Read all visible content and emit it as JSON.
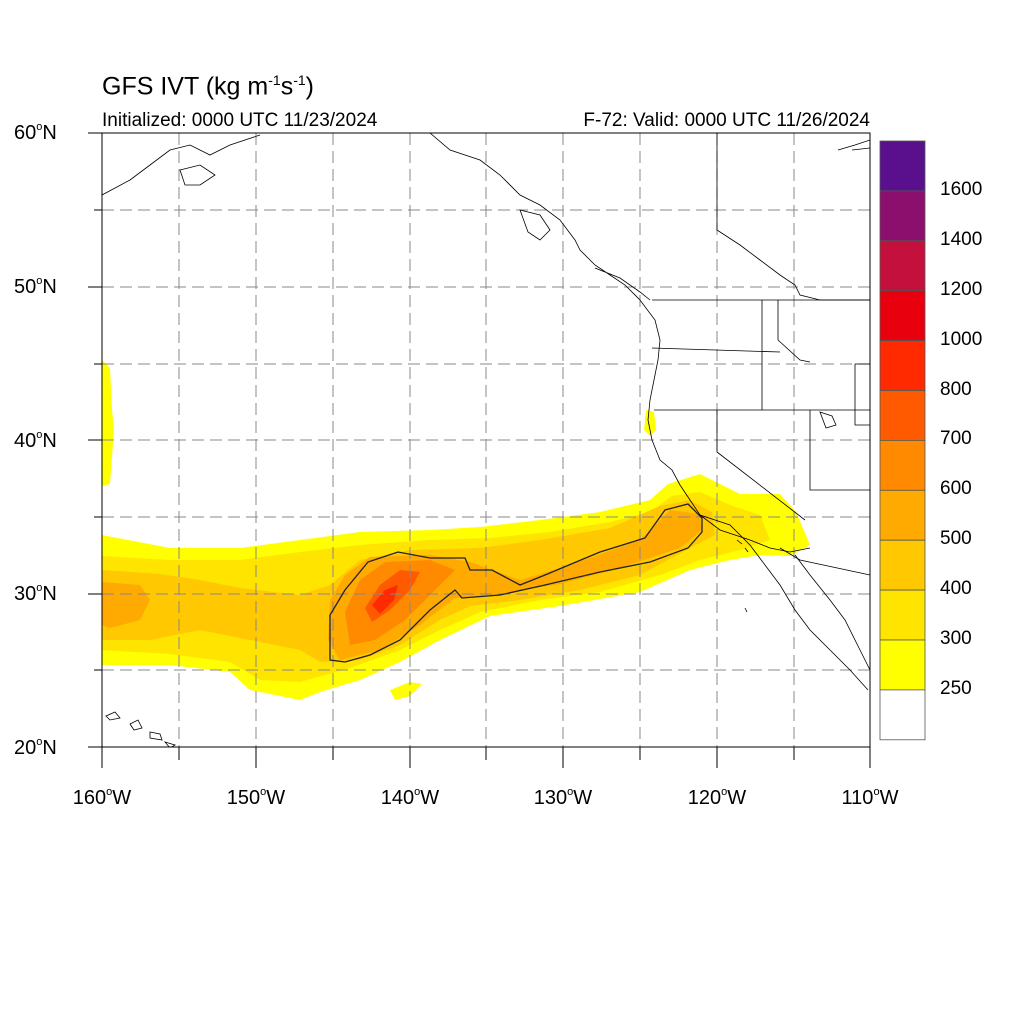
{
  "title": {
    "main": "GFS IVT (kg m",
    "sup1": "-1",
    "mid": "s",
    "sup2": "-1",
    "end": ")"
  },
  "initialized": "Initialized: 0000 UTC 11/23/2024",
  "valid": "F-72: Valid: 0000 UTC 11/26/2024",
  "lat_labels": [
    {
      "value": "60",
      "suffix": "N"
    },
    {
      "value": "50",
      "suffix": "N"
    },
    {
      "value": "40",
      "suffix": "N"
    },
    {
      "value": "30",
      "suffix": "N"
    },
    {
      "value": "20",
      "suffix": "N"
    }
  ],
  "lon_labels": [
    {
      "value": "160",
      "suffix": "W"
    },
    {
      "value": "150",
      "suffix": "W"
    },
    {
      "value": "140",
      "suffix": "W"
    },
    {
      "value": "130",
      "suffix": "W"
    },
    {
      "value": "120",
      "suffix": "W"
    },
    {
      "value": "110",
      "suffix": "W"
    }
  ],
  "colorbar": {
    "labels": [
      "1600",
      "1400",
      "1200",
      "1000",
      "800",
      "700",
      "600",
      "500",
      "400",
      "300",
      "250"
    ],
    "colors": [
      "#5a0f8c",
      "#8c0f6e",
      "#c4103d",
      "#e8000e",
      "#ff2a00",
      "#ff5a00",
      "#ff8a00",
      "#ffaa00",
      "#ffc800",
      "#ffe400",
      "#ffff00",
      "#ffffff"
    ]
  },
  "map_extent": {
    "lon": [
      -160,
      -110
    ],
    "lat": [
      20,
      60
    ]
  }
}
